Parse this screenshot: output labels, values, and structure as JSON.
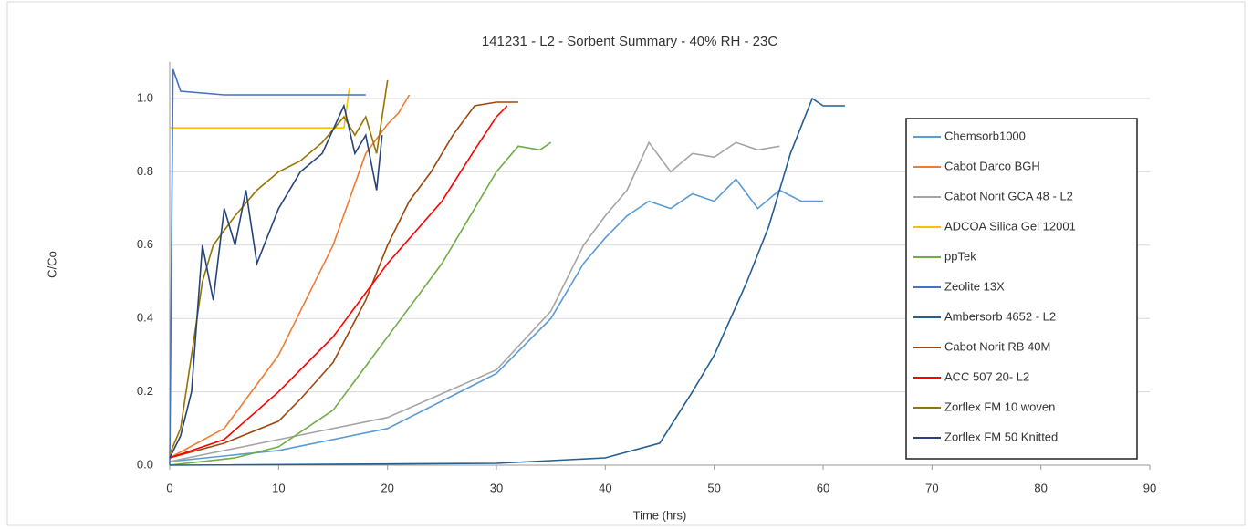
{
  "chart_data": {
    "type": "line",
    "title": "141231 - L2 - Sorbent Summary - 40% RH - 23C",
    "x_label": "Time (hrs)",
    "y_label": "C/Co",
    "xlim": [
      0,
      90
    ],
    "xticks": [
      0,
      10,
      20,
      30,
      40,
      50,
      60,
      70,
      80,
      90
    ],
    "ylim": [
      0,
      1.1
    ],
    "yticks": [
      {
        "value": 0,
        "label": "0.0"
      },
      0.2,
      0.4,
      0.6,
      0.8,
      {
        "value": 1,
        "label": "1.0"
      }
    ],
    "grid": true,
    "legend": "right",
    "series": [
      {
        "name": "Chemsorb1000",
        "color": "#5b9bd5",
        "x": [
          0,
          10,
          20,
          30,
          35,
          38,
          40,
          42,
          44,
          46,
          48,
          50,
          52,
          54,
          56,
          58,
          60
        ],
        "values": [
          0.01,
          0.04,
          0.1,
          0.25,
          0.4,
          0.55,
          0.62,
          0.68,
          0.72,
          0.7,
          0.74,
          0.72,
          0.78,
          0.7,
          0.75,
          0.72,
          0.72
        ]
      },
      {
        "name": "Cabot Darco BGH",
        "color": "#ed7d31",
        "x": [
          0,
          5,
          10,
          15,
          18,
          20,
          21,
          22
        ],
        "values": [
          0.02,
          0.1,
          0.3,
          0.6,
          0.85,
          0.93,
          0.96,
          1.01
        ]
      },
      {
        "name": "Cabot Norit GCA 48 - L2",
        "color": "#a5a5a5",
        "x": [
          0,
          10,
          20,
          30,
          35,
          38,
          40,
          42,
          44,
          46,
          48,
          50,
          52,
          54,
          56
        ],
        "values": [
          0.01,
          0.07,
          0.13,
          0.26,
          0.42,
          0.6,
          0.68,
          0.75,
          0.88,
          0.8,
          0.85,
          0.84,
          0.88,
          0.86,
          0.87
        ]
      },
      {
        "name": "ADCOA Silica Gel 12001",
        "color": "#ffc000",
        "x": [
          0,
          4,
          8,
          12,
          16,
          16.5
        ],
        "values": [
          0.92,
          0.92,
          0.92,
          0.92,
          0.92,
          1.03
        ]
      },
      {
        "name": "ppTek",
        "color": "#70ad47",
        "x": [
          0,
          6,
          10,
          15,
          20,
          25,
          30,
          32,
          34,
          35
        ],
        "values": [
          0,
          0.02,
          0.05,
          0.15,
          0.35,
          0.55,
          0.8,
          0.87,
          0.86,
          0.88
        ]
      },
      {
        "name": "Zeolite 13X",
        "color": "#4472c4",
        "x": [
          0,
          0.3,
          1,
          5,
          10,
          15,
          18
        ],
        "values": [
          0,
          1.08,
          1.02,
          1.01,
          1.01,
          1.01,
          1.01
        ]
      },
      {
        "name": "Ambersorb 4652 - L2",
        "color": "#255e91",
        "x": [
          0,
          30,
          40,
          45,
          48,
          50,
          53,
          55,
          57,
          59,
          60,
          62
        ],
        "values": [
          0,
          0.005,
          0.02,
          0.06,
          0.2,
          0.3,
          0.5,
          0.65,
          0.85,
          1.0,
          0.98,
          0.98
        ]
      },
      {
        "name": "Cabot Norit RB 40M",
        "color": "#9e480e",
        "x": [
          0,
          5,
          10,
          12,
          15,
          18,
          20,
          22,
          24,
          26,
          28,
          30,
          32
        ],
        "values": [
          0.02,
          0.06,
          0.12,
          0.18,
          0.28,
          0.45,
          0.6,
          0.72,
          0.8,
          0.9,
          0.98,
          0.99,
          0.99
        ]
      },
      {
        "name": "ACC 507 20- L2",
        "color": "#ff0000",
        "x": [
          0,
          5,
          10,
          15,
          20,
          25,
          28,
          30,
          31
        ],
        "values": [
          0.02,
          0.07,
          0.2,
          0.35,
          0.55,
          0.72,
          0.86,
          0.95,
          0.98
        ]
      },
      {
        "name": "Zorflex FM 10 woven",
        "color": "#997300",
        "x": [
          0,
          1,
          2,
          3,
          4,
          6,
          8,
          10,
          12,
          14,
          16,
          17,
          18,
          19,
          20
        ],
        "values": [
          0.03,
          0.1,
          0.3,
          0.5,
          0.6,
          0.68,
          0.75,
          0.8,
          0.83,
          0.88,
          0.95,
          0.9,
          0.95,
          0.85,
          1.05
        ]
      },
      {
        "name": "Zorflex FM 50 Knitted",
        "color": "#264478",
        "x": [
          0,
          1,
          2,
          3,
          4,
          5,
          6,
          7,
          8,
          10,
          12,
          14,
          16,
          17,
          18,
          19,
          19.5
        ],
        "values": [
          0.02,
          0.08,
          0.2,
          0.6,
          0.45,
          0.7,
          0.6,
          0.75,
          0.55,
          0.7,
          0.8,
          0.85,
          0.98,
          0.85,
          0.9,
          0.75,
          0.9
        ]
      }
    ]
  }
}
